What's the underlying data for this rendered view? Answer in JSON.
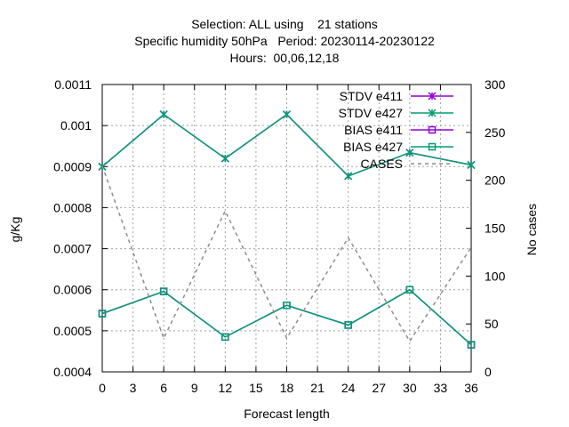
{
  "chart_data": {
    "type": "line",
    "title_lines": [
      "Selection: ALL using    21 stations",
      "Specific humidity 50hPa   Period: 20230114-20230122",
      "Hours:  00,06,12,18"
    ],
    "xlabel": "Forecast length",
    "ylabel": "g/Kg",
    "y2label": "No cases",
    "x_ticks": [
      "0",
      "3",
      "6",
      "9",
      "12",
      "15",
      "18",
      "21",
      "24",
      "27",
      "30",
      "33",
      "36"
    ],
    "y_ticks": [
      "0.0004",
      "0.0005",
      "0.0006",
      "0.0007",
      "0.0008",
      "0.0009",
      "0.001",
      "0.0011"
    ],
    "y2_ticks": [
      "0",
      "50",
      "100",
      "150",
      "200",
      "250",
      "300"
    ],
    "xlim": [
      0,
      36
    ],
    "ylim": [
      0.0004,
      0.0011
    ],
    "y2lim": [
      0,
      300
    ],
    "grid": true,
    "legend_position": "top-right",
    "x": [
      0,
      6,
      12,
      18,
      24,
      30,
      36
    ],
    "series": [
      {
        "name": "STDV e411",
        "axis": "y1",
        "marker": "x",
        "color": "#9400d3",
        "dash": false,
        "values": [
          0.0009,
          0.001027,
          0.00092,
          0.001027,
          0.000877,
          0.000934,
          0.000904
        ]
      },
      {
        "name": "STDV e427",
        "axis": "y1",
        "marker": "x",
        "color": "#009e73",
        "dash": false,
        "values": [
          0.0009,
          0.001027,
          0.00092,
          0.001027,
          0.000877,
          0.000934,
          0.000904
        ]
      },
      {
        "name": "BIAS e411",
        "axis": "y1",
        "marker": "square",
        "color": "#9400d3",
        "dash": false,
        "values": [
          0.000542,
          0.000596,
          0.000485,
          0.000562,
          0.000514,
          0.0006,
          0.000466
        ]
      },
      {
        "name": "BIAS e427",
        "axis": "y1",
        "marker": "square",
        "color": "#009e73",
        "dash": false,
        "values": [
          0.000542,
          0.000596,
          0.000485,
          0.000562,
          0.000514,
          0.0006,
          0.000466
        ]
      },
      {
        "name": "CASES",
        "axis": "y2",
        "marker": "none",
        "color": "#8c8c8c",
        "dash": true,
        "values": [
          215,
          35,
          168,
          35,
          140,
          32,
          130
        ]
      }
    ]
  }
}
